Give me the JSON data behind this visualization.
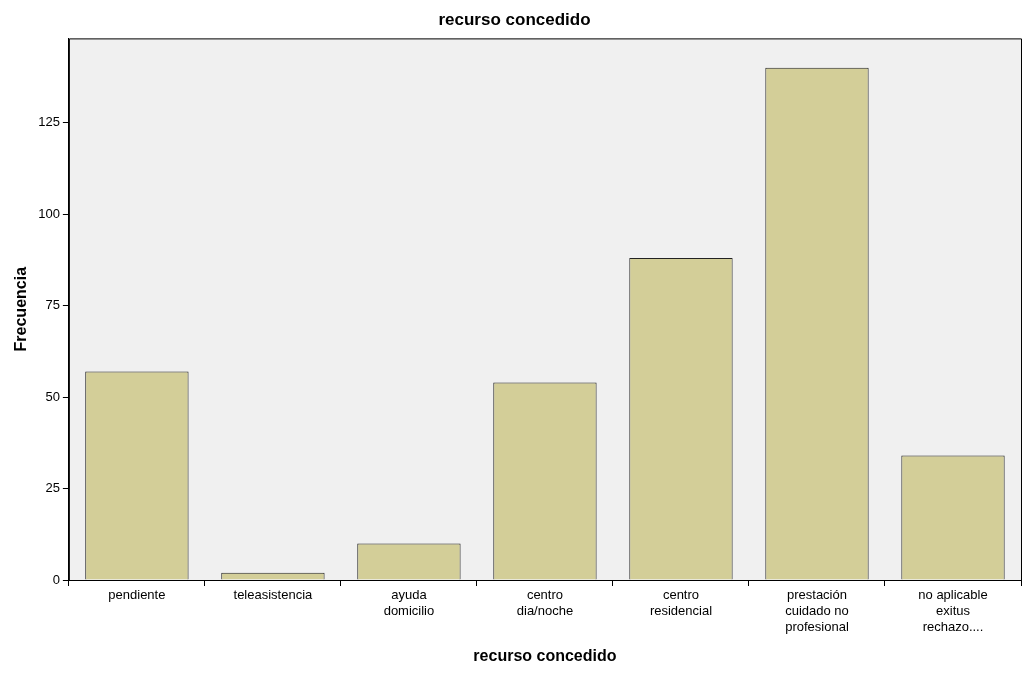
{
  "chart_data": {
    "type": "bar",
    "title": "recurso concedido",
    "xlabel": "recurso concedido",
    "ylabel": "Frecuencia",
    "categories": [
      "pendiente",
      "teleasistencia",
      "ayuda\ndomicilio",
      "centro\ndia/noche",
      "centro\nresidencial",
      "prestación\ncuidado no\nprofesional",
      "no aplicable\nexitus\nrechazo...."
    ],
    "values": [
      57,
      2,
      10,
      54,
      88,
      140,
      34
    ],
    "color": "#d3ce98",
    "ylim": [
      0,
      148
    ],
    "yticks": [
      0,
      25,
      50,
      75,
      100,
      125
    ],
    "grid": false,
    "legend": false
  }
}
